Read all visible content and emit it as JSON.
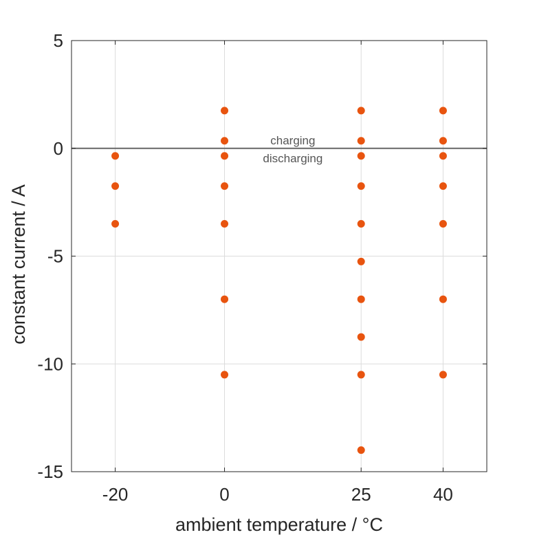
{
  "chart_data": {
    "type": "scatter",
    "title": "",
    "xlabel": "ambient temperature / °C",
    "ylabel": "constant current / A",
    "xlim": [
      -28,
      48
    ],
    "ylim": [
      -15,
      5
    ],
    "xticks": [
      -20,
      0,
      25,
      40
    ],
    "yticks": [
      5,
      0,
      -5,
      -10,
      -15
    ],
    "grid": true,
    "marker_color": "#e8540f",
    "reference_line": {
      "y": 0,
      "color": "#666666"
    },
    "annotations": [
      "charging",
      "discharging"
    ],
    "series": [
      {
        "points": [
          {
            "x": -20,
            "y": -0.35
          },
          {
            "x": -20,
            "y": -1.75
          },
          {
            "x": -20,
            "y": -3.5
          },
          {
            "x": 0,
            "y": 1.75
          },
          {
            "x": 0,
            "y": 0.35
          },
          {
            "x": 0,
            "y": -0.35
          },
          {
            "x": 0,
            "y": -1.75
          },
          {
            "x": 0,
            "y": -3.5
          },
          {
            "x": 0,
            "y": -7.0
          },
          {
            "x": 0,
            "y": -10.5
          },
          {
            "x": 25,
            "y": 1.75
          },
          {
            "x": 25,
            "y": 0.35
          },
          {
            "x": 25,
            "y": -0.35
          },
          {
            "x": 25,
            "y": -1.75
          },
          {
            "x": 25,
            "y": -3.5
          },
          {
            "x": 25,
            "y": -5.25
          },
          {
            "x": 25,
            "y": -7.0
          },
          {
            "x": 25,
            "y": -8.75
          },
          {
            "x": 25,
            "y": -10.5
          },
          {
            "x": 25,
            "y": -14.0
          },
          {
            "x": 40,
            "y": 1.75
          },
          {
            "x": 40,
            "y": 0.35
          },
          {
            "x": 40,
            "y": -0.35
          },
          {
            "x": 40,
            "y": -1.75
          },
          {
            "x": 40,
            "y": -3.5
          },
          {
            "x": 40,
            "y": -7.0
          },
          {
            "x": 40,
            "y": -10.5
          }
        ]
      }
    ]
  }
}
